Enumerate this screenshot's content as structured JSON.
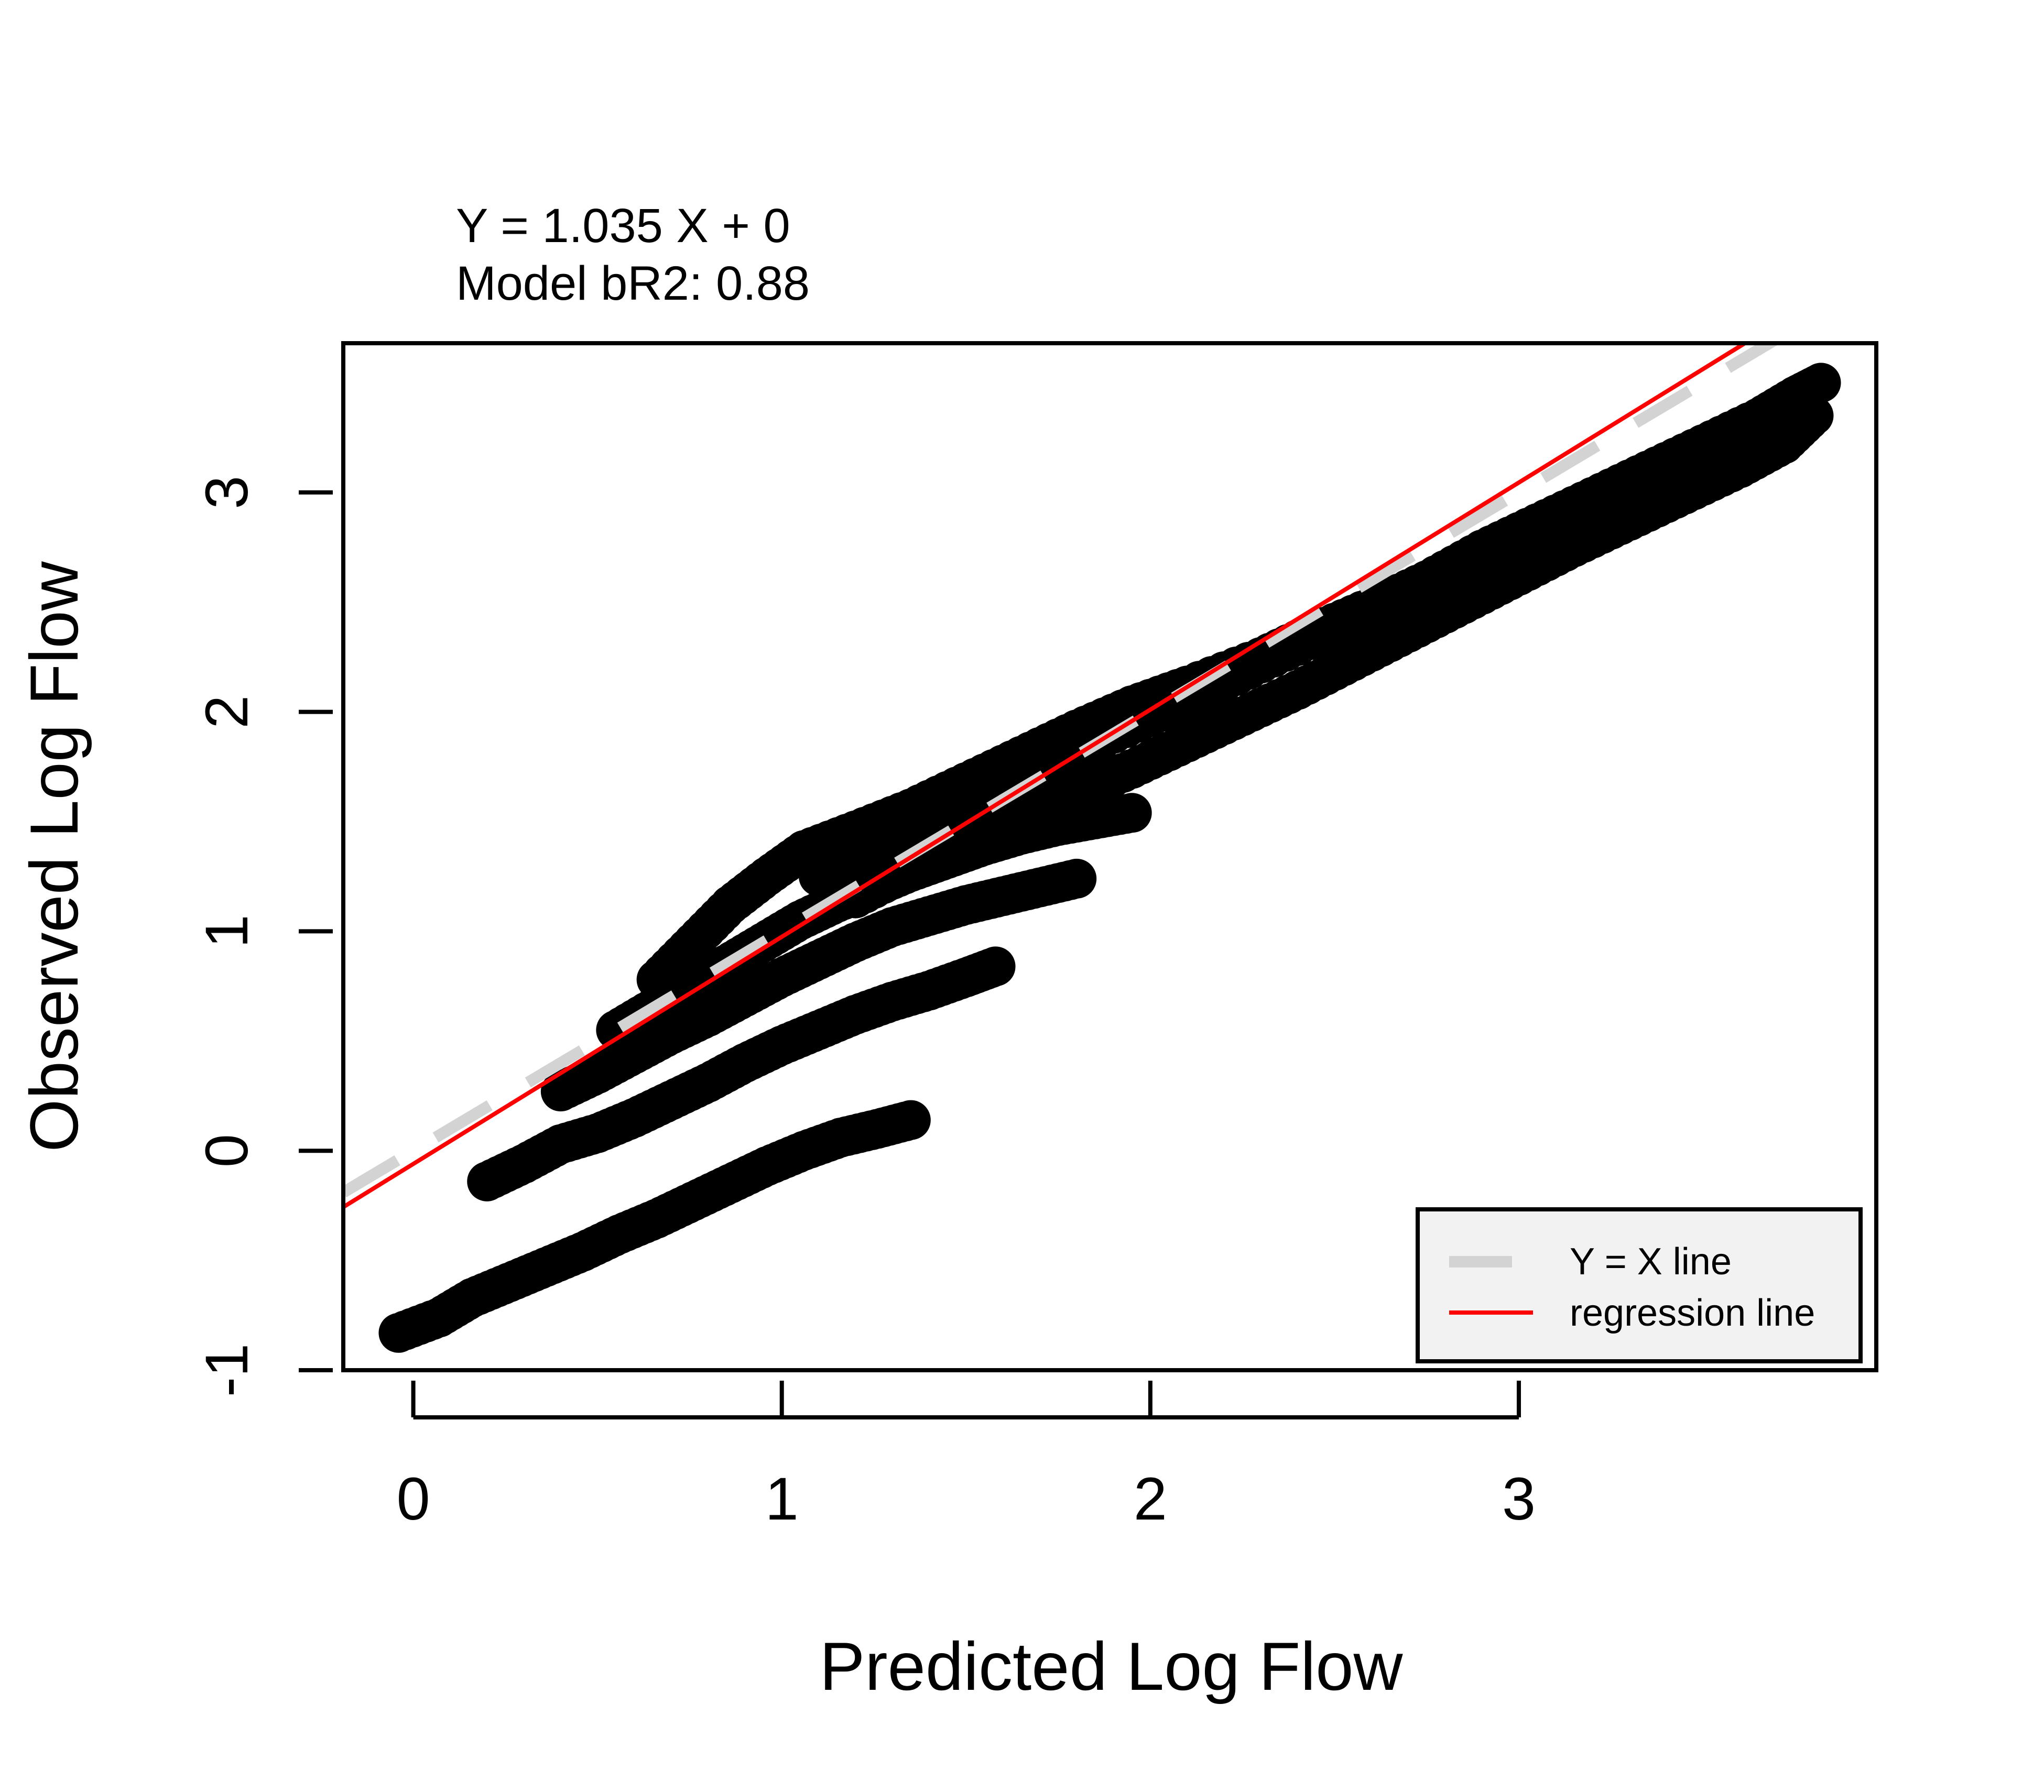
{
  "annotations": {
    "equation": "Y = 1.035 X + 0",
    "model_fit": "Model bR2: 0.88"
  },
  "chart_data": {
    "type": "scatter",
    "title": "",
    "xlabel": "Predicted Log Flow",
    "ylabel": "Observed Log Flow",
    "xlim": [
      -0.19,
      3.97
    ],
    "ylim": [
      -1.0,
      3.68
    ],
    "x_ticks": [
      0,
      1,
      2,
      3
    ],
    "y_ticks": [
      -1,
      0,
      1,
      2,
      3
    ],
    "x_tick_labels": [
      "0",
      "1",
      "2",
      "3"
    ],
    "y_tick_labels": [
      "-1",
      "0",
      "1",
      "2",
      "3"
    ],
    "grid": false,
    "legend": {
      "position": "bottom-right",
      "entries": [
        {
          "label": "Y = X line",
          "color": "#d3d3d3",
          "style": "dashed"
        },
        {
          "label": "regression line",
          "color": "#ff0000",
          "style": "solid"
        }
      ]
    },
    "point_color": "#000000",
    "lines": [
      {
        "name": "Y = X line",
        "slope": 1.0,
        "intercept": 0.0,
        "color": "#d3d3d3",
        "dash": true
      },
      {
        "name": "regression line",
        "slope": 1.035,
        "intercept": -0.06,
        "color": "#ff0000",
        "dash": false
      }
    ],
    "series": [
      {
        "points": [
          [
            -0.04,
            -0.83
          ],
          [
            0.07,
            -0.76
          ],
          [
            0.16,
            -0.67
          ],
          [
            0.26,
            -0.6
          ],
          [
            0.36,
            -0.53
          ],
          [
            0.46,
            -0.46
          ],
          [
            0.56,
            -0.38
          ],
          [
            0.66,
            -0.31
          ],
          [
            0.76,
            -0.23
          ],
          [
            0.86,
            -0.15
          ],
          [
            0.96,
            -0.07
          ],
          [
            1.06,
            0.0
          ],
          [
            1.16,
            0.06
          ],
          [
            1.26,
            0.1
          ],
          [
            1.35,
            0.14
          ]
        ]
      },
      {
        "points": [
          [
            0.2,
            -0.14
          ],
          [
            0.3,
            -0.06
          ],
          [
            0.4,
            0.03
          ],
          [
            0.5,
            0.08
          ],
          [
            0.6,
            0.15
          ],
          [
            0.7,
            0.23
          ],
          [
            0.8,
            0.31
          ],
          [
            0.9,
            0.4
          ],
          [
            1.0,
            0.48
          ],
          [
            1.1,
            0.55
          ],
          [
            1.2,
            0.62
          ],
          [
            1.3,
            0.68
          ],
          [
            1.4,
            0.73
          ],
          [
            1.5,
            0.79
          ],
          [
            1.58,
            0.84
          ]
        ]
      },
      {
        "points": [
          [
            0.4,
            0.27
          ],
          [
            0.5,
            0.35
          ],
          [
            0.6,
            0.44
          ],
          [
            0.7,
            0.53
          ],
          [
            0.8,
            0.61
          ],
          [
            0.9,
            0.7
          ],
          [
            1.0,
            0.79
          ],
          [
            1.1,
            0.87
          ],
          [
            1.2,
            0.95
          ],
          [
            1.3,
            1.02
          ],
          [
            1.4,
            1.07
          ],
          [
            1.5,
            1.12
          ],
          [
            1.6,
            1.16
          ],
          [
            1.7,
            1.2
          ],
          [
            1.8,
            1.24
          ]
        ]
      },
      {
        "points": [
          [
            0.55,
            0.55
          ],
          [
            0.65,
            0.65
          ],
          [
            0.75,
            0.75
          ],
          [
            0.85,
            0.85
          ],
          [
            0.95,
            0.95
          ],
          [
            1.05,
            1.05
          ],
          [
            1.15,
            1.13
          ],
          [
            1.25,
            1.2
          ],
          [
            1.35,
            1.27
          ],
          [
            1.45,
            1.33
          ],
          [
            1.55,
            1.39
          ],
          [
            1.65,
            1.44
          ],
          [
            1.75,
            1.48
          ],
          [
            1.85,
            1.51
          ],
          [
            1.95,
            1.54
          ]
        ]
      },
      {
        "points": [
          [
            0.66,
            0.78
          ],
          [
            0.76,
            0.95
          ],
          [
            0.86,
            1.12
          ],
          [
            0.96,
            1.25
          ],
          [
            1.06,
            1.37
          ],
          [
            1.2,
            1.46
          ],
          [
            1.35,
            1.56
          ],
          [
            1.5,
            1.68
          ],
          [
            1.65,
            1.8
          ],
          [
            1.8,
            1.92
          ],
          [
            1.95,
            2.03
          ],
          [
            2.1,
            2.12
          ],
          [
            2.3,
            2.25
          ],
          [
            2.45,
            2.37
          ],
          [
            2.6,
            2.48
          ],
          [
            2.75,
            2.6
          ],
          [
            2.9,
            2.74
          ],
          [
            3.05,
            2.86
          ],
          [
            3.2,
            2.98
          ],
          [
            3.35,
            3.1
          ],
          [
            3.5,
            3.22
          ],
          [
            3.65,
            3.34
          ],
          [
            3.75,
            3.44
          ],
          [
            3.82,
            3.5
          ]
        ]
      },
      {
        "points": [
          [
            1.2,
            1.15
          ],
          [
            1.35,
            1.28
          ],
          [
            1.5,
            1.4
          ],
          [
            1.65,
            1.52
          ],
          [
            1.8,
            1.63
          ],
          [
            1.95,
            1.74
          ],
          [
            2.1,
            1.86
          ],
          [
            2.25,
            1.98
          ],
          [
            2.4,
            2.1
          ],
          [
            2.55,
            2.23
          ],
          [
            2.7,
            2.36
          ],
          [
            2.85,
            2.49
          ],
          [
            3.0,
            2.62
          ],
          [
            3.15,
            2.75
          ],
          [
            3.3,
            2.87
          ],
          [
            3.45,
            2.99
          ],
          [
            3.6,
            3.11
          ],
          [
            3.72,
            3.22
          ],
          [
            3.8,
            3.35
          ]
        ]
      },
      {
        "points": [
          [
            1.1,
            1.25
          ],
          [
            1.3,
            1.38
          ],
          [
            1.5,
            1.55
          ],
          [
            1.7,
            1.72
          ],
          [
            1.9,
            1.9
          ],
          [
            2.1,
            2.05
          ],
          [
            2.3,
            2.22
          ],
          [
            2.5,
            2.38
          ],
          [
            2.7,
            2.55
          ],
          [
            2.9,
            2.7
          ],
          [
            3.1,
            2.86
          ],
          [
            3.3,
            3.01
          ],
          [
            3.5,
            3.17
          ],
          [
            3.7,
            3.32
          ]
        ]
      }
    ]
  }
}
